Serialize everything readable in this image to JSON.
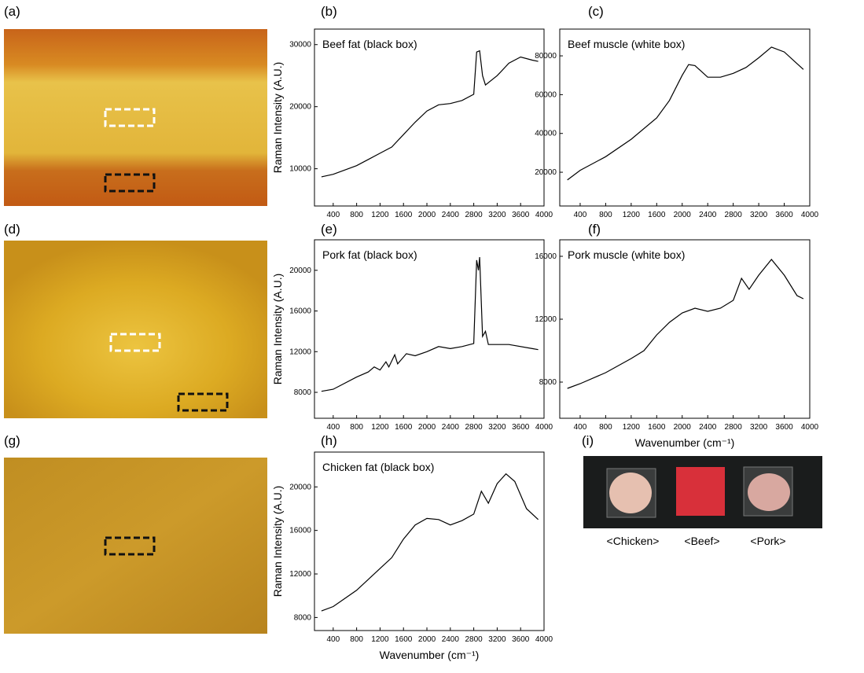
{
  "panel_labels": [
    "(a)",
    "(b)",
    "(c)",
    "(d)",
    "(e)",
    "(f)",
    "(g)",
    "(h)",
    "(i)"
  ],
  "photo_labels": [
    "<Chicken>",
    "<Beef>",
    "<Pork>"
  ],
  "chart_data": [
    {
      "type": "line",
      "annotation": "Beef fat (black box)",
      "ylabel": "Raman Intensity  (A.U.)",
      "color": "#000000",
      "x": [
        200,
        400,
        800,
        1000,
        1200,
        1400,
        1600,
        1800,
        2000,
        2200,
        2400,
        2600,
        2800,
        2850,
        2900,
        2950,
        3000,
        3200,
        3400,
        3600,
        3800,
        3900
      ],
      "values": [
        8700,
        9100,
        10500,
        11500,
        12500,
        13500,
        15500,
        17500,
        19300,
        20300,
        20500,
        21000,
        22000,
        28800,
        29000,
        25000,
        23500,
        25000,
        27000,
        28000,
        27500,
        27300
      ],
      "xlim": [
        80,
        4000
      ],
      "xticks": [
        400,
        800,
        1200,
        1600,
        2000,
        2400,
        2800,
        3200,
        3600,
        4000
      ],
      "ylim": [
        4000,
        32500
      ],
      "yticks": [
        10000,
        20000,
        30000
      ]
    },
    {
      "type": "line",
      "annotation": "Beef muscle (white box)",
      "color": "#000000",
      "x": [
        200,
        400,
        800,
        1200,
        1600,
        1800,
        2000,
        2100,
        2200,
        2400,
        2600,
        2800,
        3000,
        3200,
        3400,
        3600,
        3800,
        3900
      ],
      "values": [
        16000,
        21000,
        28000,
        37000,
        48000,
        57000,
        70000,
        75500,
        75000,
        69000,
        69000,
        71000,
        74000,
        79000,
        84500,
        82000,
        76000,
        73000
      ],
      "xlim": [
        80,
        4000
      ],
      "xticks": [
        400,
        800,
        1200,
        1600,
        2000,
        2400,
        2800,
        3200,
        3600,
        4000
      ],
      "ylim": [
        2600,
        93800
      ],
      "yticks": [
        20000,
        40000,
        60000,
        80000
      ]
    },
    {
      "type": "line",
      "annotation": "Pork fat (black box)",
      "ylabel": "Raman Intensity  (A.U.)",
      "color": "#000000",
      "x": [
        200,
        400,
        800,
        1000,
        1100,
        1200,
        1300,
        1350,
        1450,
        1500,
        1650,
        1800,
        2000,
        2200,
        2400,
        2600,
        2800,
        2850,
        2880,
        2900,
        2950,
        3000,
        3050,
        3400,
        3800,
        3900
      ],
      "values": [
        8100,
        8300,
        9500,
        10000,
        10500,
        10200,
        11000,
        10500,
        11700,
        10800,
        11800,
        11600,
        12000,
        12500,
        12300,
        12500,
        12800,
        21000,
        20000,
        21300,
        13500,
        14000,
        12700,
        12700,
        12300,
        12200
      ],
      "xlim": [
        80,
        4000
      ],
      "xticks": [
        400,
        800,
        1200,
        1600,
        2000,
        2400,
        2800,
        3200,
        3600,
        4000
      ],
      "ylim": [
        5450,
        23000
      ],
      "yticks": [
        8000,
        12000,
        16000,
        20000
      ]
    },
    {
      "type": "line",
      "annotation": "Pork muscle (white box)",
      "xlabel": "Wavenumber  (cm⁻¹)",
      "color": "#000000",
      "x": [
        200,
        400,
        800,
        1200,
        1400,
        1600,
        1800,
        2000,
        2200,
        2400,
        2600,
        2800,
        2930,
        3050,
        3200,
        3400,
        3600,
        3800,
        3900
      ],
      "values": [
        7600,
        7900,
        8600,
        9500,
        10000,
        11000,
        11800,
        12400,
        12700,
        12500,
        12700,
        13200,
        14600,
        13900,
        14800,
        15800,
        14800,
        13500,
        13300
      ],
      "xlim": [
        80,
        4000
      ],
      "xticks": [
        400,
        800,
        1200,
        1600,
        2000,
        2400,
        2800,
        3200,
        3600,
        4000
      ],
      "ylim": [
        5700,
        17050
      ],
      "yticks": [
        8000,
        12000,
        16000
      ]
    },
    {
      "type": "line",
      "annotation": "Chicken fat (black box)",
      "ylabel": "Raman Intensity  (A.U.)",
      "xlabel": "Wavenumber  (cm⁻¹)",
      "color": "#000000",
      "x": [
        200,
        400,
        800,
        1200,
        1400,
        1600,
        1800,
        2000,
        2200,
        2400,
        2600,
        2800,
        2930,
        3050,
        3200,
        3350,
        3500,
        3700,
        3900
      ],
      "values": [
        8600,
        9000,
        10500,
        12500,
        13500,
        15200,
        16500,
        17100,
        17000,
        16500,
        16900,
        17500,
        19600,
        18500,
        20300,
        21200,
        20500,
        18000,
        17000
      ],
      "xlim": [
        80,
        4000
      ],
      "xticks": [
        400,
        800,
        1200,
        1600,
        2000,
        2400,
        2800,
        3200,
        3600,
        4000
      ],
      "ylim": [
        6800,
        23200
      ],
      "yticks": [
        8000,
        12000,
        16000,
        20000
      ]
    }
  ]
}
